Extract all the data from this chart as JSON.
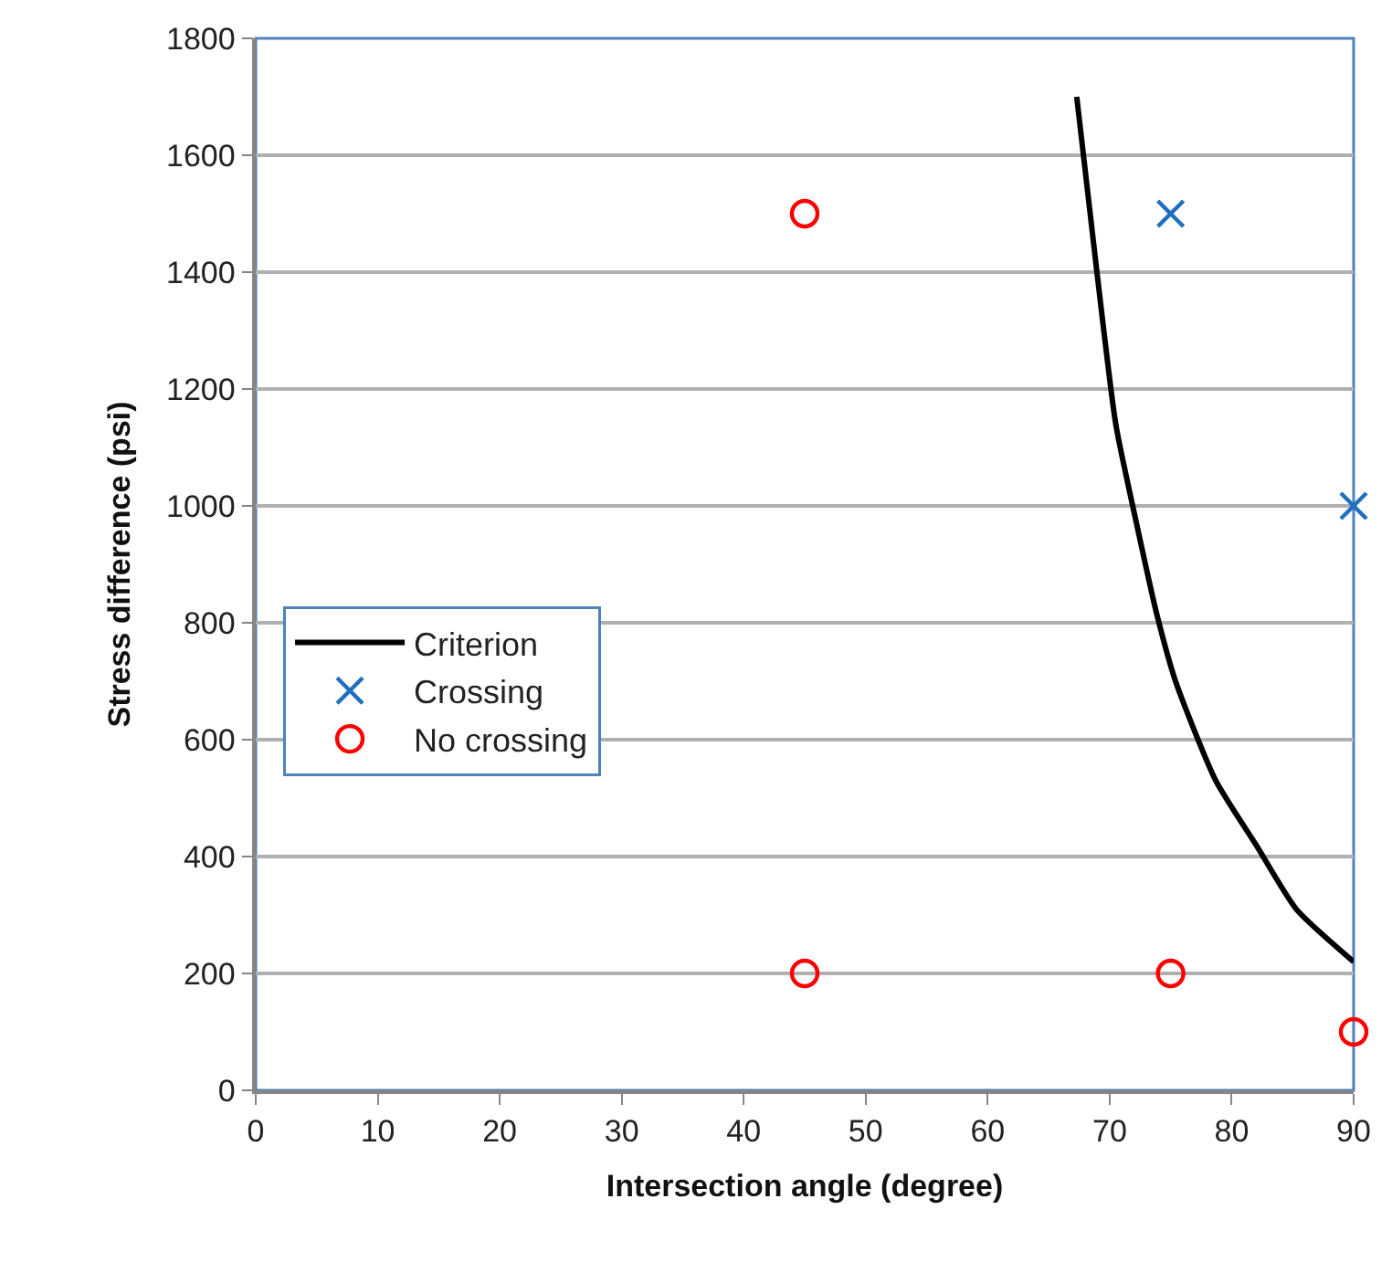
{
  "chart_data": {
    "type": "scatter",
    "xlabel": "Intersection angle (degree)",
    "ylabel": "Stress difference (psi)",
    "series": [
      {
        "name": "Criterion",
        "type": "line",
        "color": "#000000",
        "marker": "none",
        "line_style": "solid",
        "x": [
          67.3,
          68.9,
          70.5,
          72.2,
          73.8,
          75.4,
          78.7,
          82.0,
          85.3,
          90
        ],
        "values": [
          1700,
          1410,
          1140,
          970,
          820,
          700,
          530,
          420,
          310,
          220
        ]
      },
      {
        "name": "Crossing",
        "color": "#1f6fc0",
        "marker": "cross",
        "x": [
          75,
          90
        ],
        "values": [
          1500,
          1000
        ]
      },
      {
        "name": "No crossing",
        "color": "#ff0000",
        "marker": "circle",
        "x": [
          45,
          45,
          75,
          90
        ],
        "values": [
          1500,
          200,
          200,
          100
        ]
      }
    ],
    "xlim": [
      0,
      90
    ],
    "xticks": [
      0,
      10,
      20,
      30,
      40,
      50,
      60,
      70,
      80,
      90
    ],
    "ylim": [
      0,
      1800
    ],
    "yticks": [
      0,
      200,
      400,
      600,
      800,
      1000,
      1200,
      1400,
      1600,
      1800
    ],
    "grid": "y",
    "legend": "left"
  }
}
